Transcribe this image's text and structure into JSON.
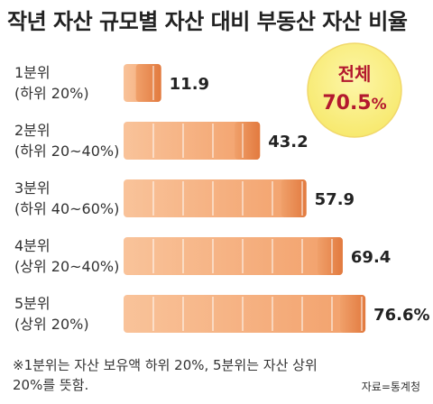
{
  "title": "작년 자산 규모별 자산 대비 부동산 자산 비율",
  "badge": {
    "label": "전체",
    "value": "70.5",
    "unit": "%"
  },
  "footnote": "※1분위는 자산 보유액 하위 20%, 5분위는 자산 상위 20%를 뜻함.",
  "source": "자료=통계청",
  "colors": {
    "bar_light": "#f7b88a",
    "bar_dark": "#e9834a",
    "badge_fill": "#fbf08a",
    "badge_text": "#b3182e"
  },
  "chart_data": {
    "type": "bar",
    "orientation": "horizontal",
    "categories": [
      {
        "line1": "1분위",
        "line2": "(하위 20%)"
      },
      {
        "line1": "2분위",
        "line2": "(하위 20~40%)"
      },
      {
        "line1": "3분위",
        "line2": "(하위 40~60%)"
      },
      {
        "line1": "4분위",
        "line2": "(상위 20~40%)"
      },
      {
        "line1": "5분위",
        "line2": "(상위 20%)"
      }
    ],
    "values": [
      11.9,
      43.2,
      57.9,
      69.4,
      76.6
    ],
    "value_labels": [
      "11.9",
      "43.2",
      "57.9",
      "69.4",
      "76.6%"
    ],
    "xlim": [
      0,
      100
    ],
    "grid": false,
    "legend": "none"
  }
}
